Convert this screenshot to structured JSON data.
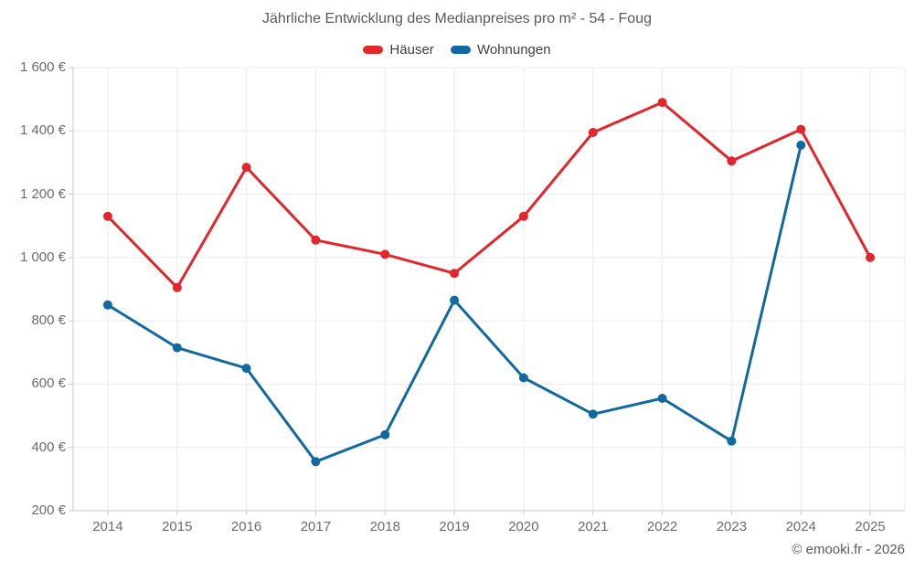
{
  "title": "Jährliche Entwicklung des Medianpreises pro m² - 54 - Foug",
  "legend": {
    "items": [
      {
        "label": "Häuser",
        "color": "#e2262b"
      },
      {
        "label": "Wohnungen",
        "color": "#1269a2"
      }
    ]
  },
  "footer": {
    "copyright": "© emooki.fr - 2026"
  },
  "chart_data": {
    "type": "line",
    "title": "Jährliche Entwicklung des Medianpreises pro m² - 54 - Foug",
    "categories": [
      "2014",
      "2015",
      "2016",
      "2017",
      "2018",
      "2019",
      "2020",
      "2021",
      "2022",
      "2023",
      "2024",
      "2025"
    ],
    "series": [
      {
        "name": "Häuser",
        "color": "#e2262b",
        "values": [
          1130,
          905,
          1285,
          1055,
          1010,
          950,
          1130,
          1395,
          1490,
          1305,
          1405,
          1000
        ]
      },
      {
        "name": "Wohnungen",
        "color": "#1269a2",
        "values": [
          850,
          715,
          650,
          355,
          440,
          865,
          620,
          505,
          555,
          420,
          1355,
          null
        ]
      }
    ],
    "xlabel": "",
    "ylabel": "",
    "ylim": [
      200,
      1600
    ],
    "ytick_step": 200,
    "yticks": [
      {
        "value": 200,
        "label": "200 €"
      },
      {
        "value": 400,
        "label": "400 €"
      },
      {
        "value": 600,
        "label": "600 €"
      },
      {
        "value": 800,
        "label": "800 €"
      },
      {
        "value": 1000,
        "label": "1 000 €"
      },
      {
        "value": 1200,
        "label": "1 200 €"
      },
      {
        "value": 1400,
        "label": "1 400 €"
      },
      {
        "value": 1600,
        "label": "1 600 €"
      }
    ],
    "grid": true,
    "legend_position": "top",
    "colors": {
      "gridline": "#ebebeb",
      "axis": "#c9c9c9",
      "tick": "#c9c9c9"
    }
  }
}
